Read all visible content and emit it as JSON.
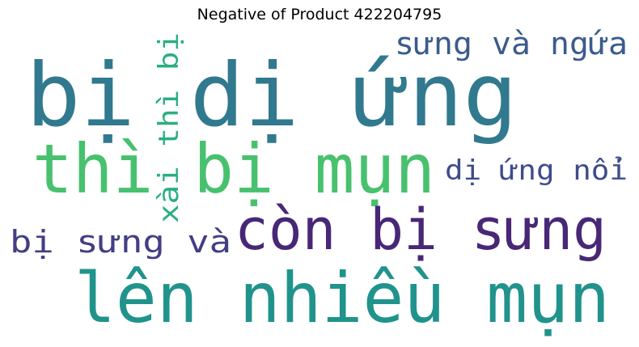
{
  "title": "Negative of Product 422204795",
  "words": [
    {
      "text": "bị dị ứng",
      "color": "#31798e"
    },
    {
      "text": "thì bị mụn",
      "color": "#48c16e"
    },
    {
      "text": "lên nhiều mụn",
      "color": "#20938c"
    },
    {
      "text": "còn bị sưng",
      "color": "#482776"
    },
    {
      "text": "sưng và ngứa",
      "color": "#3b5b8b"
    },
    {
      "text": "dị ứng nổi",
      "color": "#3f4c8a"
    },
    {
      "text": "bị sưng và",
      "color": "#433e85"
    },
    {
      "text": "xài thì bị",
      "color": "#29af7f"
    }
  ]
}
